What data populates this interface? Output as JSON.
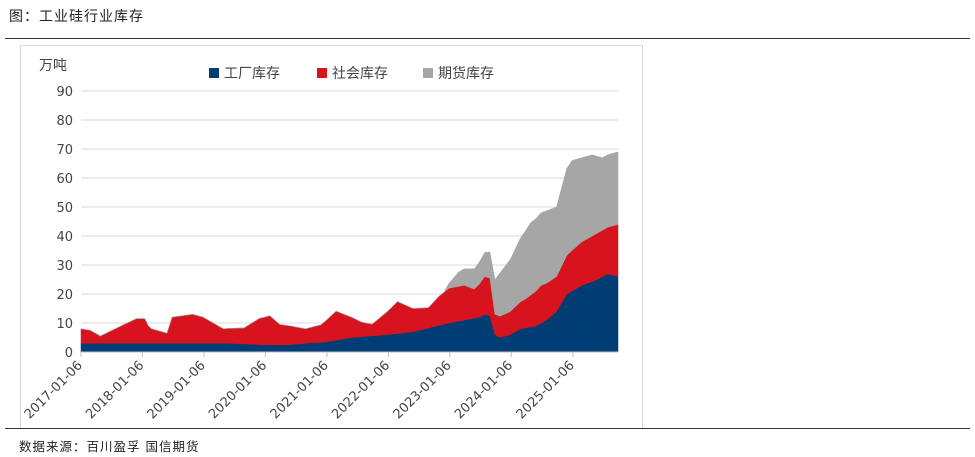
{
  "figure": {
    "title": "图：工业硅行业库存",
    "source": "数据来源：百川盈孚 国信期货"
  },
  "chart_data": {
    "type": "area",
    "stacked": true,
    "unit_label": "万吨",
    "ylim": [
      0,
      90
    ],
    "yticks": [
      0,
      10,
      20,
      30,
      40,
      50,
      60,
      70,
      80,
      90
    ],
    "xlim": [
      "2017-01-06",
      "2025-10-01"
    ],
    "xticks": [
      "2017-01-06",
      "2018-01-06",
      "2019-01-06",
      "2020-01-06",
      "2021-01-06",
      "2022-01-06",
      "2023-01-06",
      "2024-01-06",
      "2025-01-06"
    ],
    "grid": "horizontal",
    "legend_position": "top",
    "series": [
      {
        "name": "工厂库存",
        "color": "#003d74",
        "points": [
          [
            "2017-01-06",
            3.0
          ],
          [
            "2017-06-01",
            3.0
          ],
          [
            "2018-01-01",
            3.0
          ],
          [
            "2018-06-01",
            3.0
          ],
          [
            "2019-01-01",
            3.0
          ],
          [
            "2019-06-01",
            3.0
          ],
          [
            "2020-01-01",
            2.5
          ],
          [
            "2020-06-01",
            2.5
          ],
          [
            "2020-09-01",
            3.0
          ],
          [
            "2021-01-01",
            3.5
          ],
          [
            "2021-06-01",
            5.0
          ],
          [
            "2022-01-01",
            6.0
          ],
          [
            "2022-06-01",
            7.0
          ],
          [
            "2023-01-01",
            10.0
          ],
          [
            "2023-04-01",
            11.0
          ],
          [
            "2023-07-01",
            12.0
          ],
          [
            "2023-08-01",
            13.0
          ],
          [
            "2023-09-01",
            12.5
          ],
          [
            "2023-10-01",
            6.0
          ],
          [
            "2023-11-01",
            5.0
          ],
          [
            "2024-01-01",
            6.0
          ],
          [
            "2024-03-01",
            8.0
          ],
          [
            "2024-06-01",
            9.0
          ],
          [
            "2024-08-01",
            11.0
          ],
          [
            "2024-10-01",
            14.0
          ],
          [
            "2024-12-01",
            20.0
          ],
          [
            "2025-03-01",
            23.0
          ],
          [
            "2025-06-01",
            25.0
          ],
          [
            "2025-08-01",
            27.0
          ],
          [
            "2025-10-01",
            26.0
          ]
        ]
      },
      {
        "name": "社会库存",
        "color": "#d7141e",
        "points": [
          [
            "2017-01-06",
            5.0
          ],
          [
            "2017-03-01",
            4.5
          ],
          [
            "2017-05-01",
            2.5
          ],
          [
            "2017-09-01",
            6.0
          ],
          [
            "2017-12-01",
            8.5
          ],
          [
            "2018-01-20",
            8.5
          ],
          [
            "2018-02-10",
            6.0
          ],
          [
            "2018-03-01",
            5.0
          ],
          [
            "2018-06-01",
            3.5
          ],
          [
            "2018-07-01",
            9.0
          ],
          [
            "2018-11-01",
            10.0
          ],
          [
            "2019-01-01",
            9.0
          ],
          [
            "2019-05-01",
            5.0
          ],
          [
            "2019-09-01",
            5.5
          ],
          [
            "2019-12-01",
            9.0
          ],
          [
            "2020-02-01",
            10.0
          ],
          [
            "2020-04-01",
            7.0
          ],
          [
            "2020-06-01",
            6.5
          ],
          [
            "2020-09-01",
            5.0
          ],
          [
            "2020-12-01",
            6.0
          ],
          [
            "2021-03-01",
            10.0
          ],
          [
            "2021-05-01",
            8.0
          ],
          [
            "2021-08-01",
            5.0
          ],
          [
            "2021-10-01",
            4.0
          ],
          [
            "2022-01-01",
            8.0
          ],
          [
            "2022-03-01",
            11.0
          ],
          [
            "2022-06-01",
            8.0
          ],
          [
            "2022-09-01",
            7.0
          ],
          [
            "2022-11-01",
            10.0
          ],
          [
            "2023-01-01",
            12.0
          ],
          [
            "2023-04-01",
            12.0
          ],
          [
            "2023-06-01",
            10.0
          ],
          [
            "2023-08-01",
            13.0
          ],
          [
            "2023-09-01",
            13.0
          ],
          [
            "2023-10-01",
            7.0
          ],
          [
            "2024-01-01",
            8.0
          ],
          [
            "2024-04-01",
            10.0
          ],
          [
            "2024-07-01",
            13.0
          ],
          [
            "2024-10-01",
            12.0
          ],
          [
            "2025-01-01",
            14.0
          ],
          [
            "2025-03-01",
            15.0
          ],
          [
            "2025-06-01",
            16.0
          ],
          [
            "2025-08-01",
            16.0
          ],
          [
            "2025-10-01",
            18.0
          ]
        ]
      },
      {
        "name": "期货库存",
        "color": "#a6a6a6",
        "points": [
          [
            "2017-01-06",
            0
          ],
          [
            "2022-12-01",
            0
          ],
          [
            "2023-03-01",
            5.0
          ],
          [
            "2023-06-01",
            7.0
          ],
          [
            "2023-09-01",
            9.0
          ],
          [
            "2023-11-01",
            15.0
          ],
          [
            "2024-01-01",
            18.0
          ],
          [
            "2024-03-01",
            22.0
          ],
          [
            "2024-05-01",
            25.0
          ],
          [
            "2024-08-01",
            25.0
          ],
          [
            "2024-10-01",
            24.0
          ],
          [
            "2024-12-01",
            30.0
          ],
          [
            "2025-01-01",
            31.0
          ],
          [
            "2025-03-01",
            29.0
          ],
          [
            "2025-05-01",
            28.0
          ],
          [
            "2025-07-01",
            25.0
          ],
          [
            "2025-10-01",
            25.0
          ]
        ]
      }
    ]
  }
}
